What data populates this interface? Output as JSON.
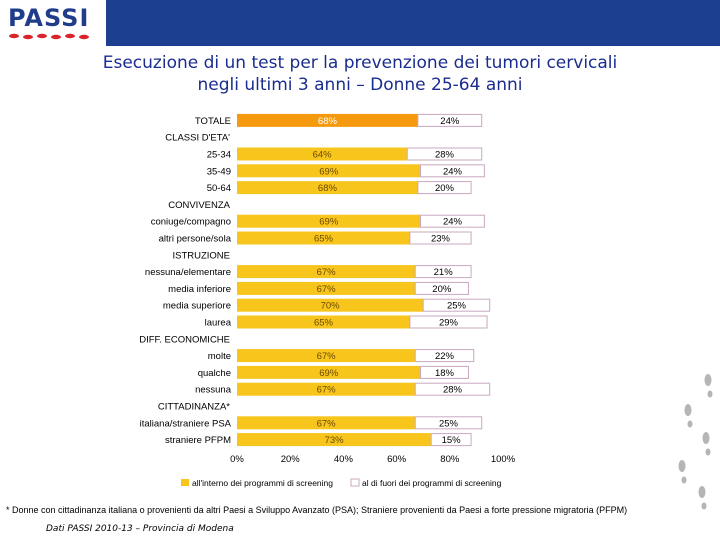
{
  "header": {
    "logo_text": "PASSI"
  },
  "title": {
    "line1": "Esecuzione di un test per la prevenzione dei tumori cervicali",
    "line2": "negli ultimi 3 anni – Donne 25-64 anni"
  },
  "colors": {
    "header_blue": "#1c3f8f",
    "bar_total": "#f59a0e",
    "bar_in": "#f7c51c",
    "bar_out_border": "#c9a8c0",
    "title": "#1a2c8e"
  },
  "chart_data": {
    "type": "bar",
    "orientation": "horizontal",
    "stacked": true,
    "xlim": [
      0,
      100
    ],
    "x_ticks": [
      "0%",
      "20%",
      "40%",
      "60%",
      "80%",
      "100%"
    ],
    "series_names": [
      "all'interno dei programmi di screening",
      "al di fuori dei programmi di screening"
    ],
    "rows": [
      {
        "label": "TOTALE",
        "kind": "total",
        "in": 68,
        "out": 24,
        "in_label": "68%",
        "out_label": "24%"
      },
      {
        "label": "CLASSI D'ETA'",
        "kind": "header"
      },
      {
        "label": "25-34",
        "kind": "bar",
        "in": 64,
        "out": 28,
        "in_label": "64%",
        "out_label": "28%"
      },
      {
        "label": "35-49",
        "kind": "bar",
        "in": 69,
        "out": 24,
        "in_label": "69%",
        "out_label": "24%"
      },
      {
        "label": "50-64",
        "kind": "bar",
        "in": 68,
        "out": 20,
        "in_label": "68%",
        "out_label": "20%"
      },
      {
        "label": "CONVIVENZA",
        "kind": "header"
      },
      {
        "label": "coniuge/compagno",
        "kind": "bar",
        "in": 69,
        "out": 24,
        "in_label": "69%",
        "out_label": "24%"
      },
      {
        "label": "altri persone/sola",
        "kind": "bar",
        "in": 65,
        "out": 23,
        "in_label": "65%",
        "out_label": "23%"
      },
      {
        "label": "ISTRUZIONE",
        "kind": "header"
      },
      {
        "label": "nessuna/elementare",
        "kind": "bar",
        "in": 67,
        "out": 21,
        "in_label": "67%",
        "out_label": "21%"
      },
      {
        "label": "media inferiore",
        "kind": "bar",
        "in": 67,
        "out": 20,
        "in_label": "67%",
        "out_label": "20%"
      },
      {
        "label": "media superiore",
        "kind": "bar",
        "in": 70,
        "out": 25,
        "in_label": "70%",
        "out_label": "25%"
      },
      {
        "label": "laurea",
        "kind": "bar",
        "in": 65,
        "out": 29,
        "in_label": "65%",
        "out_label": "29%"
      },
      {
        "label": "DIFF. ECONOMICHE",
        "kind": "header"
      },
      {
        "label": "molte",
        "kind": "bar",
        "in": 67,
        "out": 22,
        "in_label": "67%",
        "out_label": "22%"
      },
      {
        "label": "qualche",
        "kind": "bar",
        "in": 69,
        "out": 18,
        "in_label": "69%",
        "out_label": "18%"
      },
      {
        "label": "nessuna",
        "kind": "bar",
        "in": 67,
        "out": 28,
        "in_label": "67%",
        "out_label": "28%"
      },
      {
        "label": "CITTADINANZA*",
        "kind": "header"
      },
      {
        "label": "italiana/straniere PSA",
        "kind": "bar",
        "in": 67,
        "out": 25,
        "in_label": "67%",
        "out_label": "25%"
      },
      {
        "label": "straniere PFPM",
        "kind": "bar",
        "in": 73,
        "out": 15,
        "in_label": "73%",
        "out_label": "15%"
      }
    ]
  },
  "footnote": "* Donne con cittadinanza italiana o provenienti da altri Paesi a Sviluppo Avanzato (PSA); Straniere provenienti da Paesi a forte pressione migratoria (PFPM)",
  "source": "Dati PASSI 2010-13 – Provincia di Modena"
}
